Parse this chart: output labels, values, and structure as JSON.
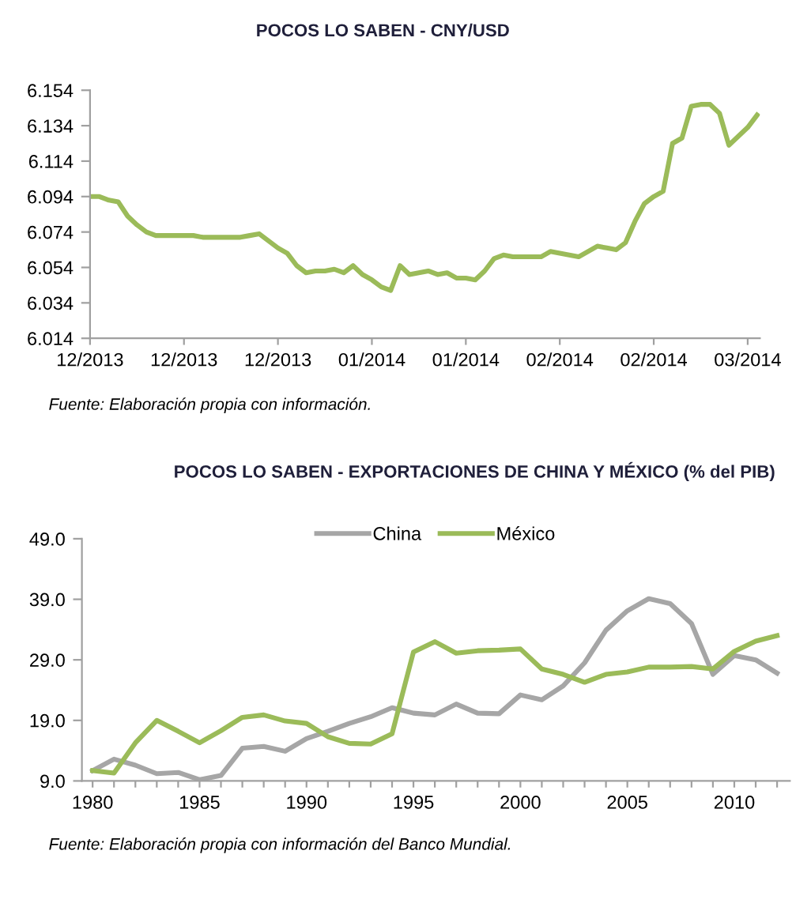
{
  "chart_data": [
    {
      "type": "line",
      "title": "POCOS LO SABEN - CNY/USD",
      "categories": [
        "12/2013",
        null,
        null,
        null,
        null,
        null,
        null,
        null,
        null,
        null,
        "12/2013",
        null,
        null,
        null,
        null,
        null,
        null,
        null,
        null,
        null,
        "12/2013",
        null,
        null,
        null,
        null,
        null,
        null,
        null,
        null,
        null,
        "01/2014",
        null,
        null,
        null,
        null,
        null,
        null,
        null,
        null,
        null,
        "01/2014",
        null,
        null,
        null,
        null,
        null,
        null,
        null,
        null,
        null,
        "02/2014",
        null,
        null,
        null,
        null,
        null,
        null,
        null,
        null,
        null,
        "02/2014",
        null,
        null,
        null,
        null,
        null,
        null,
        null,
        null,
        null,
        "03/2014",
        null
      ],
      "series": [
        {
          "color": "#9bbb59",
          "values": [
            6.094,
            6.094,
            6.092,
            6.091,
            6.083,
            6.078,
            6.074,
            6.072,
            6.072,
            6.072,
            6.072,
            6.072,
            6.071,
            6.071,
            6.071,
            6.071,
            6.071,
            6.072,
            6.073,
            6.069,
            6.065,
            6.062,
            6.055,
            6.051,
            6.052,
            6.052,
            6.053,
            6.051,
            6.055,
            6.05,
            6.047,
            6.043,
            6.041,
            6.055,
            6.05,
            6.051,
            6.052,
            6.05,
            6.051,
            6.048,
            6.048,
            6.047,
            6.052,
            6.059,
            6.061,
            6.06,
            6.06,
            6.06,
            6.06,
            6.063,
            6.062,
            6.061,
            6.06,
            6.063,
            6.066,
            6.065,
            6.064,
            6.068,
            6.08,
            6.09,
            6.094,
            6.097,
            6.124,
            6.127,
            6.145,
            6.146,
            6.146,
            6.141,
            6.123,
            6.128,
            6.133,
            6.14
          ]
        }
      ],
      "ylim": [
        6.014,
        6.154
      ],
      "yticks": [
        6.014,
        6.034,
        6.054,
        6.074,
        6.094,
        6.114,
        6.134,
        6.154
      ],
      "grid": false,
      "legend": false,
      "marker": "none",
      "line_style": "solid",
      "annotations": [
        "Fuente: Elaboración propia con información."
      ]
    },
    {
      "type": "line",
      "title": "POCOS LO SABEN - EXPORTACIONES DE CHINA Y MÉXICO (% del PIB)",
      "x": [
        1980,
        1981,
        1982,
        1983,
        1984,
        1985,
        1986,
        1987,
        1988,
        1989,
        1990,
        1991,
        1992,
        1993,
        1994,
        1995,
        1996,
        1997,
        1998,
        1999,
        2000,
        2001,
        2002,
        2003,
        2004,
        2005,
        2006,
        2007,
        2008,
        2009,
        2010,
        2011,
        2012
      ],
      "series": [
        {
          "name": "China",
          "color": "#a6a6a6",
          "values": [
            10.7,
            12.6,
            11.6,
            10.2,
            10.4,
            9.2,
            9.9,
            14.4,
            14.7,
            13.9,
            16.0,
            17.2,
            18.5,
            19.6,
            21.1,
            20.2,
            19.9,
            21.7,
            20.2,
            20.1,
            23.2,
            22.4,
            24.7,
            28.5,
            33.9,
            37.1,
            39.1,
            38.3,
            35.0,
            26.6,
            29.7,
            29.0,
            26.8
          ]
        },
        {
          "name": "México",
          "color": "#9bbb59",
          "values": [
            10.7,
            10.3,
            15.3,
            19.0,
            17.2,
            15.3,
            17.3,
            19.5,
            19.9,
            18.9,
            18.5,
            16.3,
            15.2,
            15.1,
            16.8,
            30.3,
            32.0,
            30.1,
            30.5,
            30.6,
            30.8,
            27.5,
            26.6,
            25.3,
            26.6,
            27.0,
            27.8,
            27.8,
            27.9,
            27.5,
            30.4,
            32.1,
            33.0
          ]
        }
      ],
      "xlim": [
        1979.5,
        2012.6
      ],
      "xticks": [
        1980,
        {
          "value": 1981,
          "label": null
        },
        {
          "value": 1982,
          "label": null
        },
        {
          "value": 1983,
          "label": null
        },
        {
          "value": 1984,
          "label": null
        },
        1985,
        {
          "value": 1986,
          "label": null
        },
        {
          "value": 1987,
          "label": null
        },
        {
          "value": 1988,
          "label": null
        },
        {
          "value": 1989,
          "label": null
        },
        1990,
        {
          "value": 1991,
          "label": null
        },
        {
          "value": 1992,
          "label": null
        },
        {
          "value": 1993,
          "label": null
        },
        {
          "value": 1994,
          "label": null
        },
        1995,
        {
          "value": 1996,
          "label": null
        },
        {
          "value": 1997,
          "label": null
        },
        {
          "value": 1998,
          "label": null
        },
        {
          "value": 1999,
          "label": null
        },
        2000,
        {
          "value": 2001,
          "label": null
        },
        {
          "value": 2002,
          "label": null
        },
        {
          "value": 2003,
          "label": null
        },
        {
          "value": 2004,
          "label": null
        },
        2005,
        {
          "value": 2006,
          "label": null
        },
        {
          "value": 2007,
          "label": null
        },
        {
          "value": 2008,
          "label": null
        },
        {
          "value": 2009,
          "label": null
        },
        2010,
        {
          "value": 2011,
          "label": null
        },
        {
          "value": 2012,
          "label": null
        }
      ],
      "ylim": [
        9.0,
        49.0
      ],
      "yticks": [
        {
          "value": 9.0,
          "label": "9.0"
        },
        {
          "value": 19.0,
          "label": "19.0"
        },
        {
          "value": 29.0,
          "label": "29.0"
        },
        {
          "value": 39.0,
          "label": "39.0"
        },
        {
          "value": 49.0,
          "label": "49.0"
        }
      ],
      "grid": false,
      "legend": "top",
      "marker": "none",
      "line_style": "solid",
      "annotations": [
        "Fuente: Elaboración propia con información del Banco Mundial."
      ]
    }
  ]
}
